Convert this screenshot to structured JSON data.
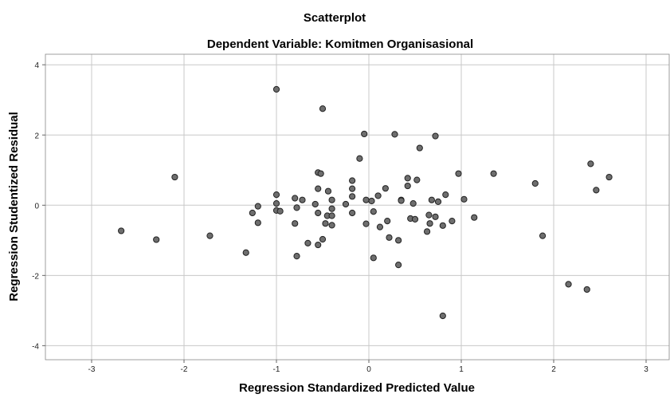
{
  "chart_data": {
    "type": "scatter",
    "title": "Scatterplot",
    "subtitle": "Dependent Variable: Komitmen Organisasional",
    "xlabel": "Regression Standardized Predicted Value",
    "ylabel": "Regression Studentized Residual",
    "xlim": [
      -3.5,
      3.25
    ],
    "ylim": [
      -4.4,
      4.3
    ],
    "xticks": [
      -3,
      -2,
      -1,
      0,
      1,
      2,
      3
    ],
    "yticks": [
      -4,
      -2,
      0,
      2,
      4
    ],
    "grid": true,
    "legend": "none",
    "marker_color": "#6e6e6e",
    "marker_edge_color": "#222222",
    "series": [
      {
        "points": [
          [
            -2.68,
            -0.73
          ],
          [
            -2.3,
            -0.98
          ],
          [
            -2.1,
            0.8
          ],
          [
            -1.72,
            -0.87
          ],
          [
            -1.33,
            -1.35
          ],
          [
            -1.26,
            -0.22
          ],
          [
            -1.2,
            -0.03
          ],
          [
            -1.2,
            -0.5
          ],
          [
            -1.0,
            3.3
          ],
          [
            -1.0,
            0.3
          ],
          [
            -1.0,
            0.05
          ],
          [
            -1.0,
            -0.15
          ],
          [
            -0.96,
            -0.17
          ],
          [
            -0.8,
            0.2
          ],
          [
            -0.8,
            -0.52
          ],
          [
            -0.78,
            -0.07
          ],
          [
            -0.78,
            -1.45
          ],
          [
            -0.72,
            0.15
          ],
          [
            -0.66,
            -1.08
          ],
          [
            -0.58,
            0.03
          ],
          [
            -0.55,
            0.93
          ],
          [
            -0.55,
            0.47
          ],
          [
            -0.55,
            -0.22
          ],
          [
            -0.55,
            -1.13
          ],
          [
            -0.52,
            0.9
          ],
          [
            -0.5,
            2.75
          ],
          [
            -0.5,
            -0.97
          ],
          [
            -0.47,
            -0.52
          ],
          [
            -0.45,
            -0.3
          ],
          [
            -0.44,
            0.4
          ],
          [
            -0.4,
            0.15
          ],
          [
            -0.4,
            -0.1
          ],
          [
            -0.4,
            -0.3
          ],
          [
            -0.4,
            -0.57
          ],
          [
            -0.25,
            0.03
          ],
          [
            -0.18,
            0.7
          ],
          [
            -0.18,
            0.47
          ],
          [
            -0.18,
            0.25
          ],
          [
            -0.18,
            -0.22
          ],
          [
            -0.1,
            1.33
          ],
          [
            -0.05,
            2.03
          ],
          [
            -0.03,
            0.15
          ],
          [
            -0.03,
            -0.53
          ],
          [
            0.03,
            0.12
          ],
          [
            0.05,
            -0.18
          ],
          [
            0.05,
            -1.5
          ],
          [
            0.1,
            0.27
          ],
          [
            0.12,
            -0.62
          ],
          [
            0.18,
            0.48
          ],
          [
            0.2,
            -0.45
          ],
          [
            0.22,
            -0.92
          ],
          [
            0.28,
            2.02
          ],
          [
            0.32,
            -1.0
          ],
          [
            0.32,
            -1.7
          ],
          [
            0.35,
            0.15
          ],
          [
            0.35,
            0.13
          ],
          [
            0.42,
            0.77
          ],
          [
            0.42,
            0.55
          ],
          [
            0.45,
            -0.38
          ],
          [
            0.48,
            0.05
          ],
          [
            0.5,
            -0.4
          ],
          [
            0.52,
            0.72
          ],
          [
            0.55,
            1.63
          ],
          [
            0.63,
            -0.75
          ],
          [
            0.65,
            -0.28
          ],
          [
            0.66,
            -0.52
          ],
          [
            0.68,
            0.15
          ],
          [
            0.72,
            1.97
          ],
          [
            0.72,
            -0.33
          ],
          [
            0.75,
            0.1
          ],
          [
            0.8,
            -3.15
          ],
          [
            0.8,
            -0.58
          ],
          [
            0.83,
            0.3
          ],
          [
            0.9,
            -0.45
          ],
          [
            0.97,
            0.9
          ],
          [
            1.03,
            0.17
          ],
          [
            1.14,
            -0.35
          ],
          [
            1.35,
            0.9
          ],
          [
            1.8,
            0.62
          ],
          [
            1.88,
            -0.87
          ],
          [
            2.16,
            -2.25
          ],
          [
            2.36,
            -2.4
          ],
          [
            2.4,
            1.18
          ],
          [
            2.46,
            0.43
          ],
          [
            2.6,
            0.8
          ]
        ]
      }
    ]
  }
}
